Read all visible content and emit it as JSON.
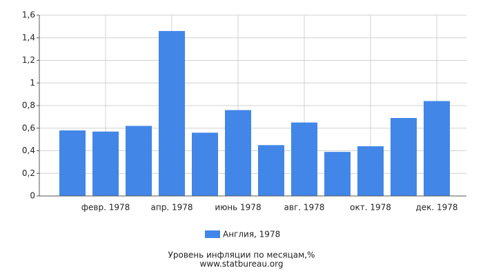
{
  "chart_data": {
    "type": "bar",
    "title": "Уровень инфляции по месяцам,%",
    "subtitle": "www.statbureau.org",
    "categories": [
      null,
      "февр. 1978",
      null,
      "апр. 1978",
      null,
      "июнь 1978",
      null,
      "авг. 1978",
      null,
      "окт. 1978",
      null,
      "дек. 1978"
    ],
    "series": [
      {
        "name": "Англия, 1978",
        "color": "#4286e8",
        "values": [
          0.58,
          0.57,
          0.62,
          1.46,
          0.56,
          0.76,
          0.45,
          0.65,
          0.39,
          0.44,
          0.69,
          0.84
        ]
      }
    ],
    "ylim": [
      0,
      1.6
    ],
    "yticks": [
      0,
      {
        "value": 0.2,
        "label": "0,2"
      },
      {
        "value": 0.4,
        "label": "0,4"
      },
      {
        "value": 0.6,
        "label": "0,6"
      },
      {
        "value": 0.8,
        "label": "0,8"
      },
      1,
      {
        "value": 1.2,
        "label": "1,2"
      },
      {
        "value": 1.4,
        "label": "1,4"
      },
      {
        "value": 1.6,
        "label": "1,6"
      }
    ],
    "grid": true
  }
}
